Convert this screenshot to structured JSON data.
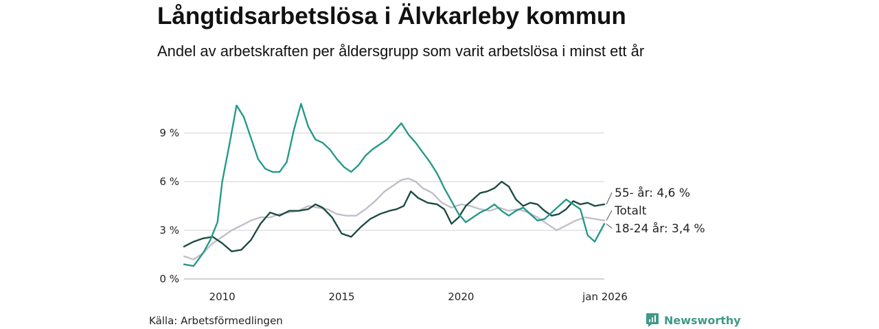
{
  "title": "Långtidsarbetslösa i Älvkarleby kommun",
  "subtitle": "Andel av arbetskraften per åldersgrupp som varit arbetslösa i minst ett år",
  "source": "Källa: Arbetsförmedlingen",
  "brand": {
    "name": "Newsworthy",
    "icon": "newsworthy-logo-icon",
    "color": "#3f9a88"
  },
  "chart_data": {
    "type": "line",
    "title": "Långtidsarbetslösa i Älvkarleby kommun",
    "xlabel": "",
    "ylabel": "",
    "xlim": [
      2008.4,
      2026.0
    ],
    "ylim": [
      0,
      12
    ],
    "grid": true,
    "y_ticks": [
      {
        "value": 0,
        "label": "0 %"
      },
      {
        "value": 3,
        "label": "3 %"
      },
      {
        "value": 6,
        "label": "6 %"
      },
      {
        "value": 9,
        "label": "9 %"
      }
    ],
    "x_ticks": [
      {
        "value": 2010,
        "label": "2010"
      },
      {
        "value": 2015,
        "label": "2015"
      },
      {
        "value": 2020,
        "label": "2020"
      },
      {
        "value": 2026,
        "label": "jan 2026"
      }
    ],
    "series": [
      {
        "name": "Totalt",
        "label": "Totalt",
        "color": "#c2bec9",
        "x": [
          2008.4,
          2008.8,
          2009.2,
          2009.6,
          2010.0,
          2010.4,
          2010.8,
          2011.2,
          2011.6,
          2012.0,
          2012.4,
          2012.8,
          2013.2,
          2013.6,
          2014.0,
          2014.4,
          2014.8,
          2015.2,
          2015.6,
          2016.0,
          2016.4,
          2016.8,
          2017.2,
          2017.5,
          2017.8,
          2018.1,
          2018.4,
          2018.8,
          2019.2,
          2019.6,
          2020.0,
          2020.4,
          2020.8,
          2021.2,
          2021.6,
          2022.0,
          2022.4,
          2022.8,
          2023.2,
          2023.6,
          2024.0,
          2024.4,
          2024.8,
          2025.2,
          2025.6,
          2026.0
        ],
        "y": [
          1.4,
          1.2,
          1.6,
          2.2,
          2.6,
          3.0,
          3.3,
          3.6,
          3.8,
          3.8,
          4.0,
          4.1,
          4.2,
          4.5,
          4.4,
          4.3,
          4.0,
          3.9,
          3.9,
          4.3,
          4.8,
          5.4,
          5.8,
          6.1,
          6.2,
          6.0,
          5.6,
          5.3,
          4.7,
          4.4,
          4.6,
          4.5,
          4.3,
          4.2,
          4.4,
          4.2,
          4.3,
          4.1,
          3.8,
          3.4,
          3.0,
          3.3,
          3.6,
          3.8,
          3.7,
          3.6
        ]
      },
      {
        "name": "55- år",
        "label": "55- år: 4,6 %",
        "color": "#1d4b43",
        "x": [
          2008.4,
          2008.8,
          2009.2,
          2009.6,
          2010.0,
          2010.4,
          2010.8,
          2011.2,
          2011.6,
          2012.0,
          2012.4,
          2012.8,
          2013.2,
          2013.6,
          2013.9,
          2014.2,
          2014.6,
          2015.0,
          2015.4,
          2015.8,
          2016.2,
          2016.6,
          2017.0,
          2017.3,
          2017.6,
          2017.9,
          2018.2,
          2018.6,
          2019.0,
          2019.3,
          2019.6,
          2019.9,
          2020.2,
          2020.5,
          2020.8,
          2021.1,
          2021.4,
          2021.7,
          2022.0,
          2022.3,
          2022.6,
          2022.9,
          2023.2,
          2023.5,
          2023.8,
          2024.1,
          2024.4,
          2024.7,
          2025.0,
          2025.3,
          2025.6,
          2026.0
        ],
        "y": [
          2.0,
          2.3,
          2.5,
          2.6,
          2.2,
          1.7,
          1.8,
          2.4,
          3.4,
          4.1,
          3.9,
          4.2,
          4.2,
          4.3,
          4.6,
          4.4,
          3.8,
          2.8,
          2.6,
          3.2,
          3.7,
          4.0,
          4.2,
          4.3,
          4.5,
          5.4,
          5.0,
          4.7,
          4.6,
          4.3,
          3.4,
          3.8,
          4.5,
          4.9,
          5.3,
          5.4,
          5.6,
          6.0,
          5.7,
          4.9,
          4.5,
          4.7,
          4.6,
          4.2,
          3.9,
          4.0,
          4.3,
          4.8,
          4.6,
          4.7,
          4.5,
          4.6
        ]
      },
      {
        "name": "18-24 år",
        "label": "18-24 år: 3,4 %",
        "color": "#25998a",
        "x": [
          2008.4,
          2008.8,
          2009.2,
          2009.5,
          2009.8,
          2010.0,
          2010.3,
          2010.6,
          2010.9,
          2011.2,
          2011.5,
          2011.8,
          2012.1,
          2012.4,
          2012.7,
          2013.0,
          2013.3,
          2013.6,
          2013.9,
          2014.2,
          2014.5,
          2014.8,
          2015.1,
          2015.4,
          2015.7,
          2016.0,
          2016.3,
          2016.6,
          2016.9,
          2017.2,
          2017.5,
          2017.8,
          2018.1,
          2018.4,
          2018.7,
          2019.0,
          2019.3,
          2019.6,
          2019.9,
          2020.2,
          2020.5,
          2020.8,
          2021.1,
          2021.4,
          2021.7,
          2022.0,
          2022.3,
          2022.6,
          2022.9,
          2023.2,
          2023.5,
          2023.8,
          2024.1,
          2024.4,
          2024.7,
          2025.0,
          2025.3,
          2025.6,
          2026.0
        ],
        "y": [
          0.9,
          0.8,
          1.6,
          2.4,
          3.5,
          6.0,
          8.3,
          10.7,
          10.0,
          8.7,
          7.4,
          6.8,
          6.6,
          6.6,
          7.2,
          9.2,
          10.8,
          9.4,
          8.6,
          8.4,
          8.0,
          7.4,
          6.9,
          6.6,
          7.0,
          7.6,
          8.0,
          8.3,
          8.6,
          9.1,
          9.6,
          8.9,
          8.4,
          7.8,
          7.2,
          6.5,
          5.6,
          4.8,
          4.0,
          3.5,
          3.8,
          4.1,
          4.3,
          4.6,
          4.2,
          3.9,
          4.2,
          4.4,
          4.0,
          3.6,
          3.7,
          4.1,
          4.5,
          4.9,
          4.6,
          4.3,
          2.7,
          2.3,
          3.4
        ]
      }
    ]
  }
}
